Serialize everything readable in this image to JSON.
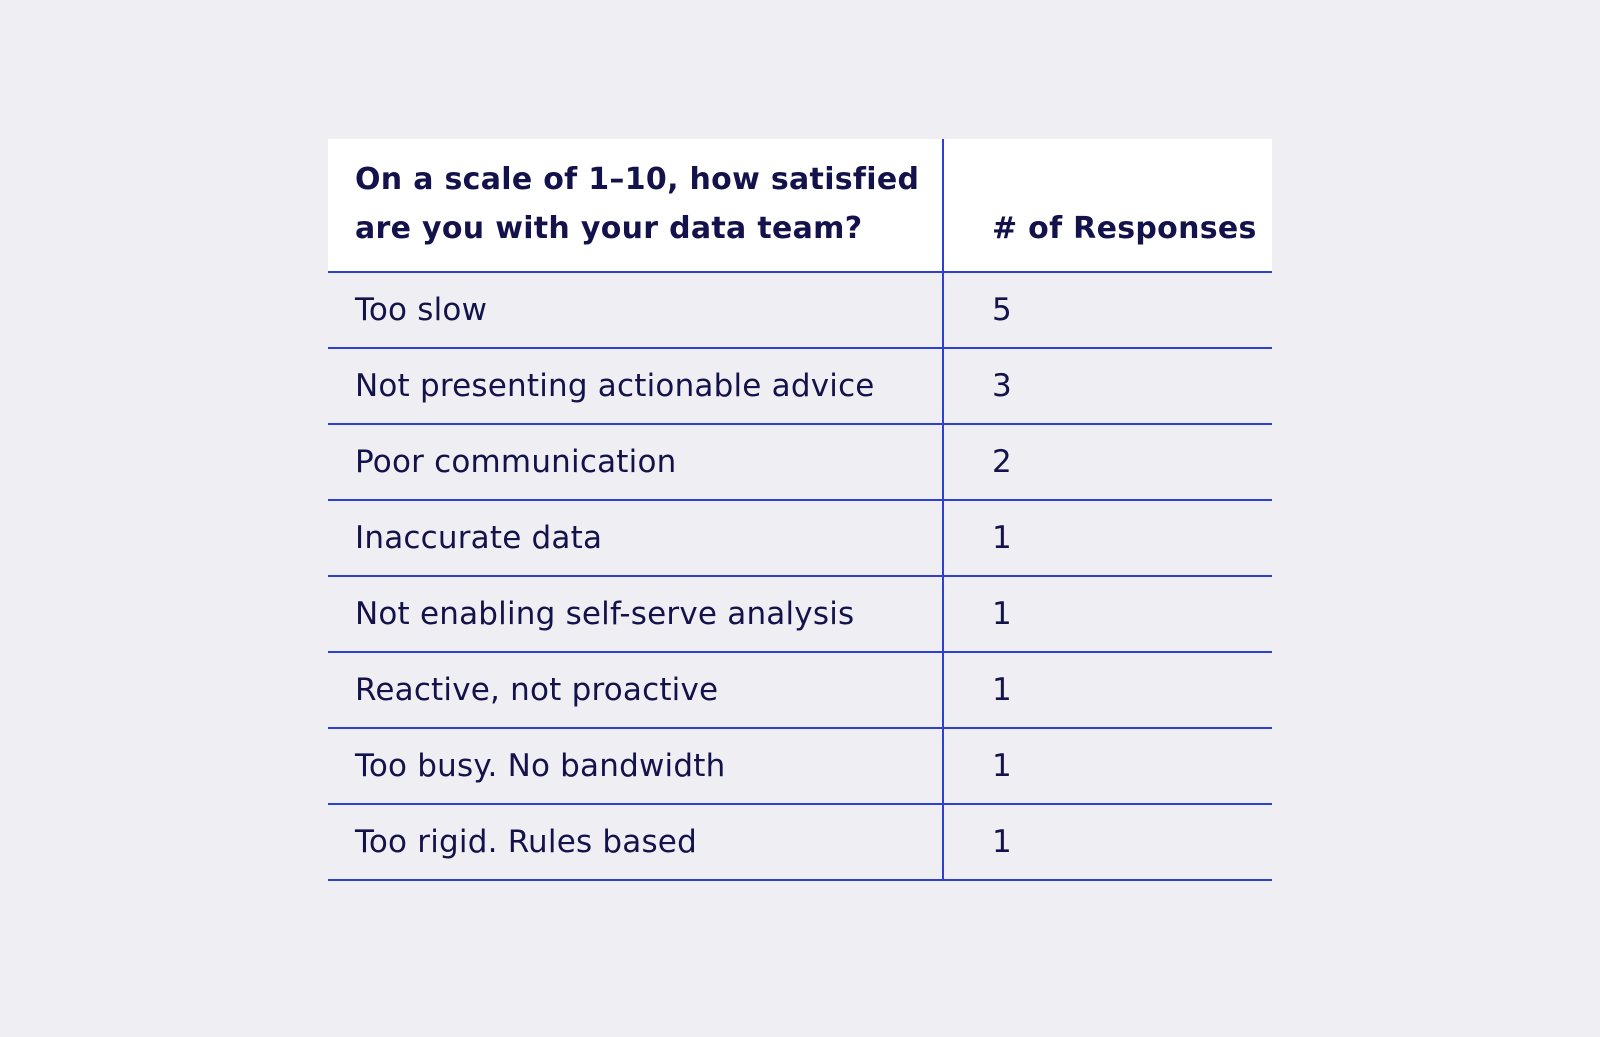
{
  "table": {
    "header": {
      "question": "On a scale of 1–10, how satisfied are you with your data team?",
      "responses_label": "# of Responses"
    },
    "rows": [
      {
        "reason": "Too slow",
        "count": "5"
      },
      {
        "reason": "Not presenting actionable advice",
        "count": "3"
      },
      {
        "reason": "Poor communication",
        "count": "2"
      },
      {
        "reason": "Inaccurate data",
        "count": "1"
      },
      {
        "reason": "Not enabling self-serve analysis",
        "count": "1"
      },
      {
        "reason": "Reactive, not proactive",
        "count": "1"
      },
      {
        "reason": "Too busy. No bandwidth",
        "count": "1"
      },
      {
        "reason": "Too rigid. Rules based",
        "count": "1"
      }
    ]
  },
  "colors": {
    "background": "#efeff3",
    "header_background": "#ffffff",
    "text": "#14124a",
    "rule": "#2f3fd0"
  }
}
